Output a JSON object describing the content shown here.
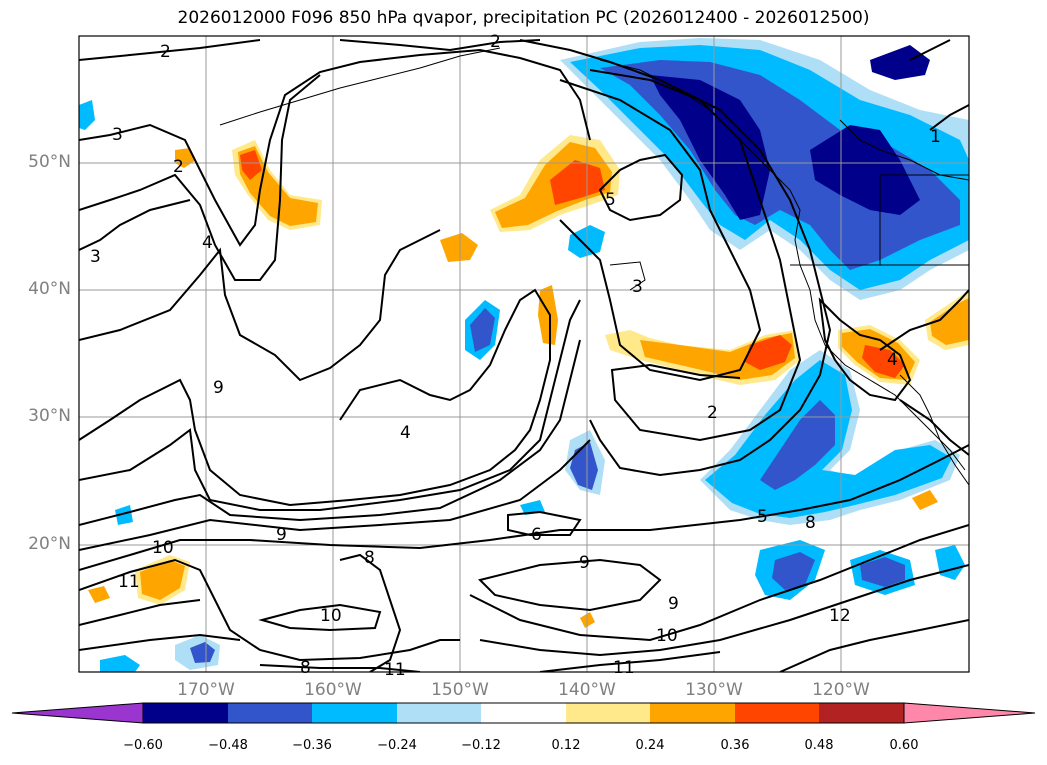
{
  "title": "2026012000 F096 850 hPa qvapor, precipitation PC (2026012400 - 2026012500)",
  "lat_labels": [
    {
      "text": "50°N",
      "value": 50
    },
    {
      "text": "40°N",
      "value": 40
    },
    {
      "text": "30°N",
      "value": 30
    },
    {
      "text": "20°N",
      "value": 20
    }
  ],
  "lon_labels": [
    {
      "text": "170°W",
      "value": -170
    },
    {
      "text": "160°W",
      "value": -160
    },
    {
      "text": "150°W",
      "value": -150
    },
    {
      "text": "140°W",
      "value": -140
    },
    {
      "text": "130°W",
      "value": -130
    },
    {
      "text": "120°W",
      "value": -120
    }
  ],
  "colorbar": {
    "ticks": [
      "−0.60",
      "−0.48",
      "−0.36",
      "−0.24",
      "−0.12",
      "0.12",
      "0.24",
      "0.36",
      "0.48",
      "0.60"
    ],
    "colors": [
      "#9a35cf",
      "#00008b",
      "#3355cc",
      "#00bbff",
      "#aedff7",
      "#ffffff",
      "#ffe98a",
      "#ffa500",
      "#ff4500",
      "#b22222",
      "#ff88aa"
    ]
  },
  "contour_labels": [
    {
      "text": "2"
    },
    {
      "text": "2"
    },
    {
      "text": "3"
    },
    {
      "text": "2"
    },
    {
      "text": "3"
    },
    {
      "text": "4"
    },
    {
      "text": "5"
    },
    {
      "text": "3"
    },
    {
      "text": "1"
    },
    {
      "text": "9"
    },
    {
      "text": "4"
    },
    {
      "text": "2"
    },
    {
      "text": "4"
    },
    {
      "text": "9"
    },
    {
      "text": "6"
    },
    {
      "text": "10"
    },
    {
      "text": "11"
    },
    {
      "text": "8"
    },
    {
      "text": "9"
    },
    {
      "text": "5"
    },
    {
      "text": "8"
    },
    {
      "text": "10"
    },
    {
      "text": "9"
    },
    {
      "text": "10"
    },
    {
      "text": "12"
    },
    {
      "text": "8"
    },
    {
      "text": "11"
    },
    {
      "text": "11"
    }
  ]
}
